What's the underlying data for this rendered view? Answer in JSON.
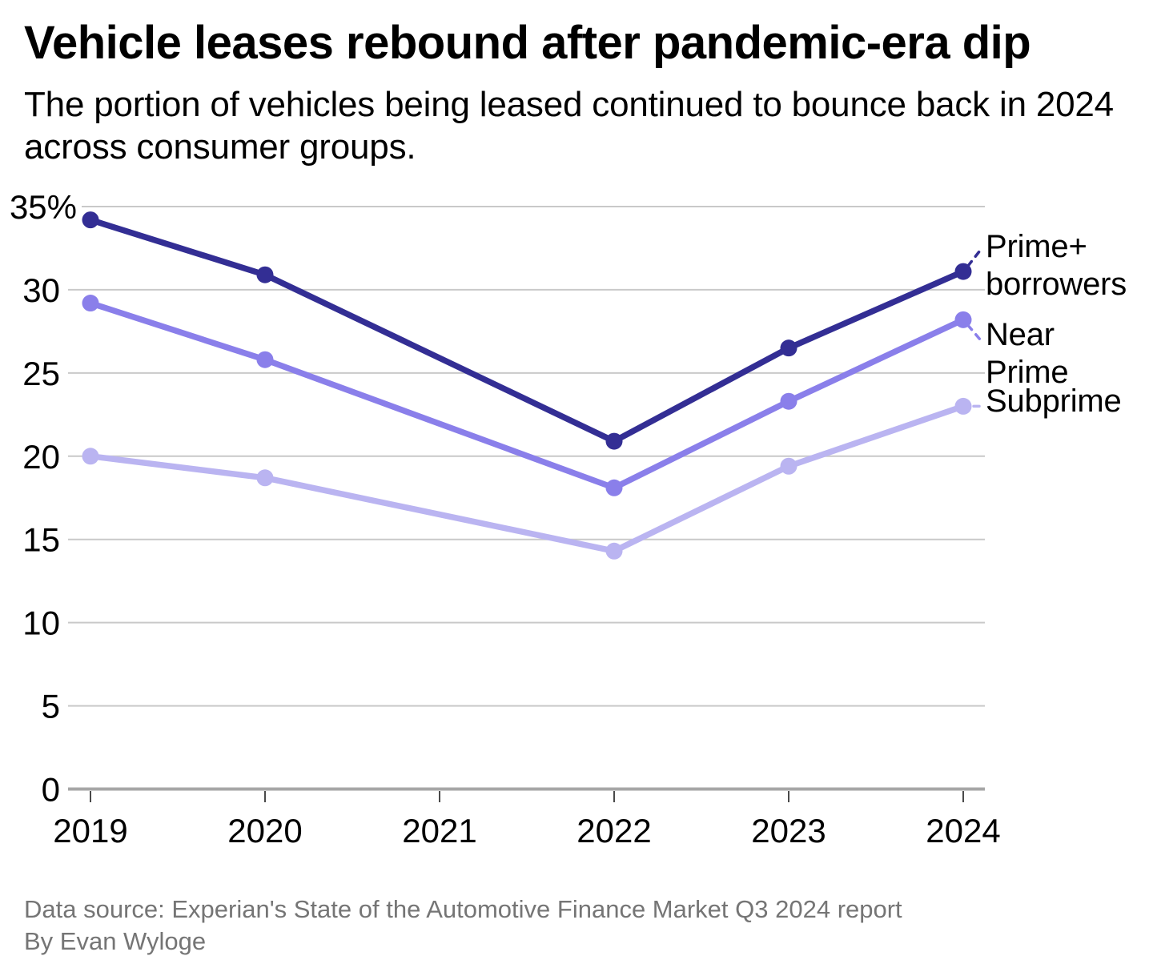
{
  "header": {
    "title": "Vehicle leases rebound after pandemic-era dip",
    "subtitle": "The portion of vehicles being leased continued to bounce back in 2024 across consumer groups."
  },
  "chart_data": {
    "type": "line",
    "title": "Vehicle leases rebound after pandemic-era dip",
    "x": [
      2019,
      2020,
      2021,
      2022,
      2023,
      2024
    ],
    "series": [
      {
        "name": "Prime+ borrowers",
        "color": "#332e94",
        "values": [
          34.2,
          30.9,
          null,
          20.9,
          26.5,
          31.1
        ]
      },
      {
        "name": "Near Prime",
        "color": "#8a7fea",
        "values": [
          29.2,
          25.8,
          null,
          18.1,
          23.3,
          28.2
        ]
      },
      {
        "name": "Subprime",
        "color": "#bab4f1",
        "values": [
          20.0,
          18.7,
          null,
          14.3,
          19.4,
          23.0
        ]
      }
    ],
    "ylim": [
      0,
      35
    ],
    "yticks": [
      {
        "value": 0,
        "label": "0"
      },
      {
        "value": 5,
        "label": "5"
      },
      {
        "value": 10,
        "label": "10"
      },
      {
        "value": 15,
        "label": "15"
      },
      {
        "value": 20,
        "label": "20"
      },
      {
        "value": 25,
        "label": "25"
      },
      {
        "value": 30,
        "label": "30"
      },
      {
        "value": 35,
        "label": "35%"
      }
    ],
    "grid": "horizontal",
    "grid_color": "#c9c9c9",
    "axis_color": "#a6a6a6",
    "legend_position": "right-inline",
    "unit": "%"
  },
  "legend": {
    "prime_plus": [
      "Prime+",
      "borrowers"
    ],
    "near_prime": [
      "Near",
      "Prime"
    ],
    "subprime": [
      "Subprime"
    ]
  },
  "footer": {
    "source": "Data source: Experian's State of the Automotive Finance Market Q3 2024 report",
    "byline": "By Evan Wyloge"
  }
}
